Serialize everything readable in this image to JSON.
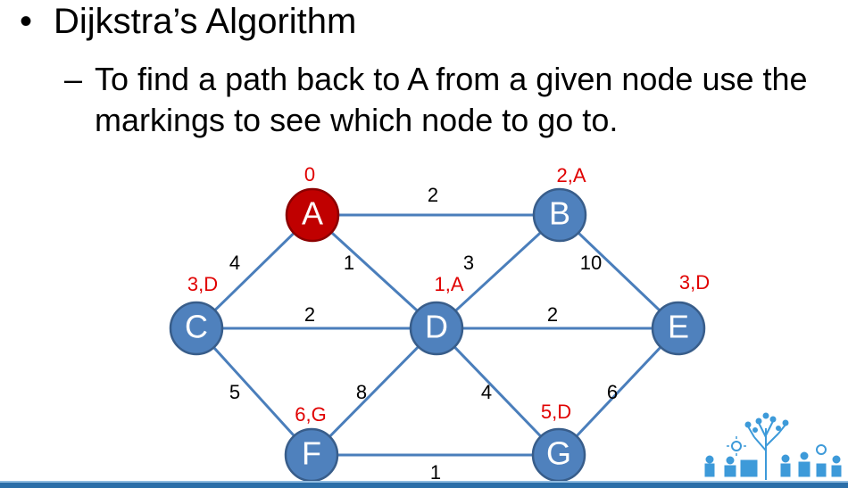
{
  "title": "Dijkstra’s Algorithm",
  "bullet_symbol": "•",
  "sub_dash": "–",
  "sub_line1": "To find a path back to A from a given node use the",
  "sub_line2": "markings to see which node to go to.",
  "colors": {
    "node_fill": "#4f81bd",
    "node_stroke": "#385d8a",
    "source_fill": "#c00000",
    "source_stroke": "#8c0000",
    "edge": "#4a7ebb",
    "marking": "#e00000"
  },
  "nodes": [
    {
      "id": "A",
      "label": "A",
      "marking": "0",
      "source": true
    },
    {
      "id": "B",
      "label": "B",
      "marking": "2,A",
      "source": false
    },
    {
      "id": "C",
      "label": "C",
      "marking": "3,D",
      "source": false
    },
    {
      "id": "D",
      "label": "D",
      "marking": "1,A",
      "source": false
    },
    {
      "id": "E",
      "label": "E",
      "marking": "3,D",
      "source": false
    },
    {
      "id": "F",
      "label": "F",
      "marking": "6,G",
      "source": false
    },
    {
      "id": "G",
      "label": "G",
      "marking": "5,D",
      "source": false
    }
  ],
  "edges": [
    {
      "from": "A",
      "to": "B",
      "weight": "2"
    },
    {
      "from": "A",
      "to": "C",
      "weight": "4"
    },
    {
      "from": "A",
      "to": "D",
      "weight": "1"
    },
    {
      "from": "B",
      "to": "D",
      "weight": "3"
    },
    {
      "from": "B",
      "to": "E",
      "weight": "10"
    },
    {
      "from": "C",
      "to": "D",
      "weight": "2"
    },
    {
      "from": "D",
      "to": "E",
      "weight": "2"
    },
    {
      "from": "C",
      "to": "F",
      "weight": "5"
    },
    {
      "from": "D",
      "to": "F",
      "weight": "8"
    },
    {
      "from": "D",
      "to": "G",
      "weight": "4"
    },
    {
      "from": "E",
      "to": "G",
      "weight": "6"
    },
    {
      "from": "F",
      "to": "G",
      "weight": "1"
    }
  ]
}
